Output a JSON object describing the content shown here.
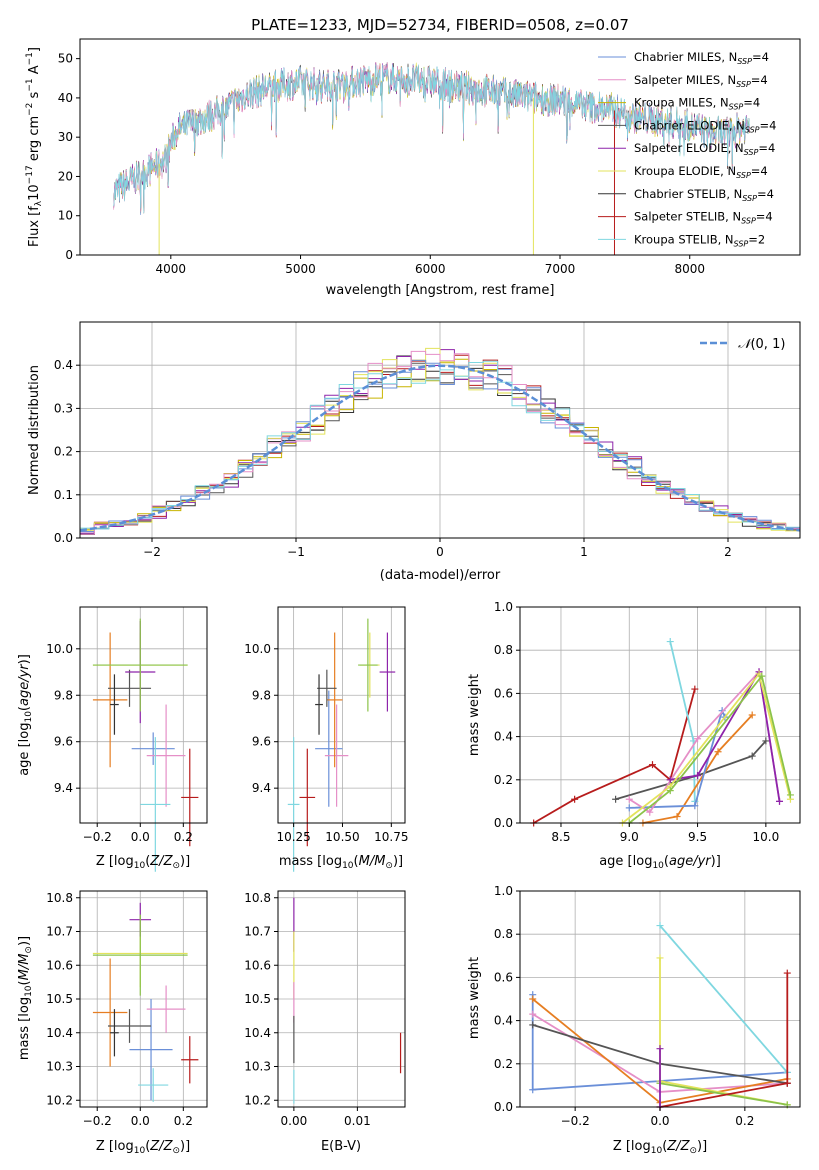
{
  "figure": {
    "title": "PLATE=1233, MJD=52734, FIBERID=0508, z=0.07"
  },
  "colors": {
    "chabrier_miles": "#6a8fd8",
    "salpeter_miles": "#e58fc7",
    "kroupa_miles": "#c8b400",
    "chabrier_elodie": "#555555",
    "salpeter_elodie": "#8e24aa",
    "kroupa_elodie": "#e3e35c",
    "chabrier_stelib": "#333333",
    "salpeter_stelib": "#b71c1c",
    "kroupa_stelib": "#7fd7e0",
    "orange": "#e67e22",
    "green": "#8bc34a",
    "gaussian": "#5b8fd6"
  },
  "chart_data": [
    {
      "id": "spectrum",
      "type": "line",
      "xlabel": "wavelength [Angstrom, rest frame]",
      "ylabel": "Flux [f",
      "xlim": [
        3300,
        8850
      ],
      "ylim": [
        0,
        55
      ],
      "xticks": [
        4000,
        5000,
        6000,
        7000,
        8000
      ],
      "yticks": [
        0,
        10,
        20,
        30,
        40,
        50
      ],
      "grid": false,
      "legend_position": "top-right",
      "legend": [
        {
          "label": "Chabrier MILES, N",
          "sub": "SSP",
          "suffix": "=4",
          "color_key": "chabrier_miles"
        },
        {
          "label": "Salpeter MILES, N",
          "sub": "SSP",
          "suffix": "=4",
          "color_key": "salpeter_miles"
        },
        {
          "label": "Kroupa MILES, N",
          "sub": "SSP",
          "suffix": "=4",
          "color_key": "kroupa_miles"
        },
        {
          "label": "Chabrier ELODIE, N",
          "sub": "SSP",
          "suffix": "=4",
          "color_key": "chabrier_elodie"
        },
        {
          "label": "Salpeter ELODIE, N",
          "sub": "SSP",
          "suffix": "=4",
          "color_key": "salpeter_elodie"
        },
        {
          "label": "Kroupa ELODIE, N",
          "sub": "SSP",
          "suffix": "=4",
          "color_key": "kroupa_elodie"
        },
        {
          "label": "Chabrier STELIB, N",
          "sub": "SSP",
          "suffix": "=4",
          "color_key": "chabrier_stelib"
        },
        {
          "label": "Salpeter STELIB, N",
          "sub": "SSP",
          "suffix": "=4",
          "color_key": "salpeter_stelib"
        },
        {
          "label": "Kroupa STELIB, N",
          "sub": "SSP",
          "suffix": "=2",
          "color_key": "kroupa_stelib"
        }
      ],
      "continuum": [
        [
          3560,
          16
        ],
        [
          3700,
          19
        ],
        [
          3850,
          22
        ],
        [
          3950,
          24
        ],
        [
          4050,
          32
        ],
        [
          4200,
          34
        ],
        [
          4400,
          37
        ],
        [
          4600,
          41
        ],
        [
          4800,
          43
        ],
        [
          5000,
          44
        ],
        [
          5200,
          43
        ],
        [
          5400,
          44
        ],
        [
          5600,
          45
        ],
        [
          5800,
          45
        ],
        [
          6000,
          44
        ],
        [
          6200,
          43
        ],
        [
          6400,
          42
        ],
        [
          6600,
          41
        ],
        [
          6800,
          40
        ],
        [
          7000,
          39.5
        ],
        [
          7200,
          38
        ],
        [
          7400,
          37
        ],
        [
          7600,
          35
        ],
        [
          7800,
          34
        ],
        [
          8000,
          33
        ],
        [
          8150,
          31
        ],
        [
          8300,
          31
        ],
        [
          8460,
          33
        ]
      ],
      "spikes": [
        {
          "x": 3910,
          "y": 0,
          "color_key": "kroupa_elodie"
        },
        {
          "x": 6795,
          "y": 0,
          "color_key": "kroupa_elodie"
        },
        {
          "x": 7420,
          "y": 0,
          "color_key": "salpeter_stelib"
        }
      ]
    },
    {
      "id": "residual-histogram",
      "type": "step",
      "xlabel": "(data-model)/error",
      "ylabel": "Normed distribution",
      "xlim": [
        -2.5,
        2.5
      ],
      "ylim": [
        0,
        0.5
      ],
      "xticks": [
        -2,
        -1,
        0,
        1,
        2
      ],
      "yticks": [
        0.0,
        0.1,
        0.2,
        0.3,
        0.4
      ],
      "grid": true,
      "legend_position": "top-right",
      "legend_label": "N(0,1)",
      "bin_width": 0.1
    },
    {
      "id": "age-vs-Z",
      "type": "errorbar",
      "xlabel": "Z [log",
      "ylabel": "age [log",
      "xlim": [
        -0.28,
        0.31
      ],
      "ylim": [
        9.25,
        10.18
      ],
      "xticks": [
        -0.2,
        0.0,
        0.2
      ],
      "yticks": [
        9.4,
        9.6,
        9.8,
        10.0
      ],
      "grid": true,
      "points": [
        {
          "x": 0.06,
          "y": 9.57,
          "xerr": 0.1,
          "yerr": 0.07,
          "color_key": "chabrier_miles"
        },
        {
          "x": 0.12,
          "y": 9.54,
          "xerr": 0.09,
          "yerr": 0.22,
          "color_key": "salpeter_miles"
        },
        {
          "x": -0.14,
          "y": 9.78,
          "xerr": 0.08,
          "yerr": 0.29,
          "color_key": "orange"
        },
        {
          "x": 0.0,
          "y": 9.93,
          "xerr": 0.22,
          "yerr": 0.14,
          "color_key": "kroupa_elodie"
        },
        {
          "x": -0.05,
          "y": 9.83,
          "xerr": 0.1,
          "yerr": 0.08,
          "color_key": "chabrier_elodie"
        },
        {
          "x": 0.0,
          "y": 9.9,
          "xerr": 0.07,
          "yerr": 0.22,
          "color_key": "salpeter_elodie"
        },
        {
          "x": 0.0,
          "y": 9.93,
          "xerr": 0.22,
          "yerr": 0.2,
          "color_key": "green"
        },
        {
          "x": -0.12,
          "y": 9.76,
          "xerr": 0.02,
          "yerr": 0.13,
          "color_key": "chabrier_stelib"
        },
        {
          "x": 0.23,
          "y": 9.36,
          "xerr": 0.04,
          "yerr": 0.21,
          "color_key": "salpeter_stelib"
        },
        {
          "x": 0.07,
          "y": 9.33,
          "xerr": 0.07,
          "yerr": 0.29,
          "color_key": "kroupa_stelib"
        }
      ]
    },
    {
      "id": "age-vs-mass",
      "type": "errorbar",
      "xlabel": "mass [log",
      "ylabel": "",
      "xlim": [
        10.17,
        10.82
      ],
      "ylim": [
        9.25,
        10.18
      ],
      "xticks": [
        10.25,
        10.5,
        10.75
      ],
      "yticks": [
        9.4,
        9.6,
        9.8,
        10.0
      ],
      "grid": true,
      "points": [
        {
          "x": 10.43,
          "y": 9.57,
          "xerr": 0.07,
          "yerr": 0.25,
          "color_key": "chabrier_miles"
        },
        {
          "x": 10.47,
          "y": 9.54,
          "xerr": 0.06,
          "yerr": 0.22,
          "color_key": "salpeter_miles"
        },
        {
          "x": 10.46,
          "y": 9.78,
          "xerr": 0.04,
          "yerr": 0.29,
          "color_key": "orange"
        },
        {
          "x": 10.64,
          "y": 9.93,
          "xerr": 0.05,
          "yerr": 0.14,
          "color_key": "kroupa_elodie"
        },
        {
          "x": 10.42,
          "y": 9.83,
          "xerr": 0.05,
          "yerr": 0.08,
          "color_key": "chabrier_elodie"
        },
        {
          "x": 10.73,
          "y": 9.9,
          "xerr": 0.04,
          "yerr": 0.17,
          "color_key": "salpeter_elodie"
        },
        {
          "x": 10.63,
          "y": 9.93,
          "xerr": 0.05,
          "yerr": 0.2,
          "color_key": "green"
        },
        {
          "x": 10.38,
          "y": 9.76,
          "xerr": 0.02,
          "yerr": 0.13,
          "color_key": "chabrier_stelib"
        },
        {
          "x": 10.32,
          "y": 9.36,
          "xerr": 0.04,
          "yerr": 0.21,
          "color_key": "salpeter_stelib"
        },
        {
          "x": 10.25,
          "y": 9.33,
          "xerr": 0.03,
          "yerr": 0.29,
          "color_key": "kroupa_stelib"
        }
      ]
    },
    {
      "id": "massweight-vs-age",
      "type": "line",
      "xlabel": "age [log",
      "ylabel": "mass weight",
      "xlim": [
        8.2,
        10.25
      ],
      "ylim": [
        0.0,
        1.0
      ],
      "xticks": [
        8.5,
        9.0,
        9.5,
        10.0
      ],
      "yticks": [
        0.0,
        0.2,
        0.4,
        0.6,
        0.8,
        1.0
      ],
      "grid": true,
      "series": [
        {
          "color_key": "salpeter_stelib",
          "points": [
            [
              8.3,
              0.0
            ],
            [
              8.6,
              0.11
            ],
            [
              9.17,
              0.27
            ],
            [
              9.3,
              0.2
            ],
            [
              9.48,
              0.62
            ]
          ]
        },
        {
          "color_key": "kroupa_stelib",
          "points": [
            [
              9.3,
              0.84
            ],
            [
              9.47,
              0.38
            ],
            [
              9.48,
              0.1
            ]
          ]
        },
        {
          "color_key": "chabrier_elodie",
          "points": [
            [
              8.9,
              0.11
            ],
            [
              9.5,
              0.22
            ],
            [
              9.9,
              0.31
            ],
            [
              10.0,
              0.38
            ]
          ]
        },
        {
          "color_key": "orange",
          "points": [
            [
              9.1,
              0.0
            ],
            [
              9.35,
              0.03
            ],
            [
              9.65,
              0.33
            ],
            [
              9.9,
              0.5
            ]
          ]
        },
        {
          "color_key": "chabrier_miles",
          "points": [
            [
              9.0,
              0.07
            ],
            [
              9.48,
              0.08
            ],
            [
              9.68,
              0.52
            ],
            [
              9.7,
              0.49
            ]
          ]
        },
        {
          "color_key": "salpeter_miles",
          "points": [
            [
              9.0,
              0.11
            ],
            [
              9.15,
              0.05
            ],
            [
              9.5,
              0.39
            ],
            [
              9.95,
              0.7
            ],
            [
              10.1,
              0.1
            ]
          ]
        },
        {
          "color_key": "salpeter_elodie",
          "points": [
            [
              9.3,
              0.2
            ],
            [
              9.5,
              0.22
            ],
            [
              9.95,
              0.7
            ],
            [
              10.1,
              0.1
            ]
          ]
        },
        {
          "color_key": "kroupa_elodie",
          "points": [
            [
              8.95,
              0.0
            ],
            [
              9.3,
              0.17
            ],
            [
              9.95,
              0.69
            ],
            [
              10.18,
              0.11
            ]
          ]
        },
        {
          "color_key": "green",
          "points": [
            [
              9.0,
              0.0
            ],
            [
              9.3,
              0.15
            ],
            [
              9.97,
              0.68
            ],
            [
              10.18,
              0.13
            ]
          ]
        }
      ]
    },
    {
      "id": "mass-vs-Z",
      "type": "errorbar",
      "xlabel": "Z [log",
      "ylabel": "mass [log",
      "xlim": [
        -0.28,
        0.31
      ],
      "ylim": [
        10.18,
        10.82
      ],
      "xticks": [
        -0.2,
        0.0,
        0.2
      ],
      "yticks": [
        10.2,
        10.3,
        10.4,
        10.5,
        10.6,
        10.7,
        10.8
      ],
      "grid": true,
      "points": [
        {
          "x": 0.05,
          "y": 10.35,
          "xerr": 0.1,
          "yerr": 0.15,
          "color_key": "chabrier_miles"
        },
        {
          "x": 0.12,
          "y": 10.47,
          "xerr": 0.09,
          "yerr": 0.07,
          "color_key": "salpeter_miles"
        },
        {
          "x": -0.14,
          "y": 10.46,
          "xerr": 0.08,
          "yerr": 0.16,
          "color_key": "orange"
        },
        {
          "x": 0.0,
          "y": 10.635,
          "xerr": 0.22,
          "yerr": 0.1,
          "color_key": "kroupa_elodie"
        },
        {
          "x": -0.05,
          "y": 10.42,
          "xerr": 0.1,
          "yerr": 0.05,
          "color_key": "chabrier_elodie"
        },
        {
          "x": 0.0,
          "y": 10.735,
          "xerr": 0.05,
          "yerr": 0.05,
          "color_key": "salpeter_elodie"
        },
        {
          "x": 0.0,
          "y": 10.63,
          "xerr": 0.22,
          "yerr": 0.12,
          "color_key": "green"
        },
        {
          "x": -0.12,
          "y": 10.4,
          "xerr": 0.02,
          "yerr": 0.07,
          "color_key": "chabrier_stelib"
        },
        {
          "x": 0.23,
          "y": 10.32,
          "xerr": 0.04,
          "yerr": 0.07,
          "color_key": "salpeter_stelib"
        },
        {
          "x": 0.06,
          "y": 10.245,
          "xerr": 0.07,
          "yerr": 0.05,
          "color_key": "kroupa_stelib"
        }
      ]
    },
    {
      "id": "mass-vs-EBV",
      "type": "errorbar",
      "xlabel": "E(B-V)",
      "ylabel": "",
      "xlim": [
        -0.0025,
        0.0175
      ],
      "ylim": [
        10.18,
        10.82
      ],
      "xticks": [
        0.0,
        0.01
      ],
      "xticklabels": [
        "0.00",
        "0.01"
      ],
      "yticks": [
        10.2,
        10.3,
        10.4,
        10.5,
        10.6,
        10.7,
        10.8
      ],
      "grid": true,
      "points": [
        {
          "x": 0.0,
          "y": 10.72,
          "xerr": 0,
          "yerr": 0.08,
          "color_key": "salpeter_elodie"
        },
        {
          "x": 0.0,
          "y": 10.6,
          "xerr": 0,
          "yerr": 0.1,
          "color_key": "kroupa_elodie"
        },
        {
          "x": 0.0,
          "y": 10.49,
          "xerr": 0,
          "yerr": 0.06,
          "color_key": "salpeter_miles"
        },
        {
          "x": 0.0,
          "y": 10.38,
          "xerr": 0,
          "yerr": 0.07,
          "color_key": "chabrier_elodie"
        },
        {
          "x": 0.0,
          "y": 10.24,
          "xerr": 0,
          "yerr": 0.05,
          "color_key": "kroupa_stelib"
        },
        {
          "x": 0.0168,
          "y": 10.34,
          "xerr": 0,
          "yerr": 0.06,
          "color_key": "salpeter_stelib"
        }
      ]
    },
    {
      "id": "massweight-vs-Z",
      "type": "line",
      "xlabel": "Z [log",
      "ylabel": "mass weight",
      "xlim": [
        -0.33,
        0.33
      ],
      "ylim": [
        0.0,
        1.0
      ],
      "xticks": [
        -0.2,
        0.0,
        0.2
      ],
      "yticks": [
        0.0,
        0.2,
        0.4,
        0.6,
        0.8,
        1.0
      ],
      "grid": true,
      "series": [
        {
          "color_key": "chabrier_miles",
          "points": [
            [
              -0.3,
              0.52
            ],
            [
              -0.3,
              0.08
            ],
            [
              0.3,
              0.16
            ]
          ]
        },
        {
          "color_key": "salpeter_miles",
          "points": [
            [
              -0.3,
              0.43
            ],
            [
              0.0,
              0.07
            ],
            [
              0.3,
              0.11
            ]
          ]
        },
        {
          "color_key": "orange",
          "points": [
            [
              -0.3,
              0.5
            ],
            [
              0.0,
              0.02
            ],
            [
              0.3,
              0.13
            ]
          ]
        },
        {
          "color_key": "chabrier_elodie",
          "points": [
            [
              -0.3,
              0.38
            ],
            [
              0.0,
              0.2
            ],
            [
              0.3,
              0.11
            ]
          ]
        },
        {
          "color_key": "kroupa_stelib",
          "points": [
            [
              0.0,
              0.84
            ],
            [
              0.3,
              0.16
            ]
          ]
        },
        {
          "color_key": "kroupa_elodie",
          "points": [
            [
              0.0,
              0.69
            ],
            [
              0.0,
              0.12
            ],
            [
              0.3,
              0.01
            ]
          ]
        },
        {
          "color_key": "green",
          "points": [
            [
              0.0,
              0.11
            ],
            [
              0.3,
              0.01
            ]
          ]
        },
        {
          "color_key": "salpeter_stelib",
          "points": [
            [
              0.0,
              0.0
            ],
            [
              0.3,
              0.11
            ],
            [
              0.3,
              0.62
            ]
          ]
        },
        {
          "color_key": "salpeter_elodie",
          "points": [
            [
              0.0,
              0.27
            ],
            [
              0.0,
              0.0
            ]
          ]
        }
      ]
    }
  ]
}
